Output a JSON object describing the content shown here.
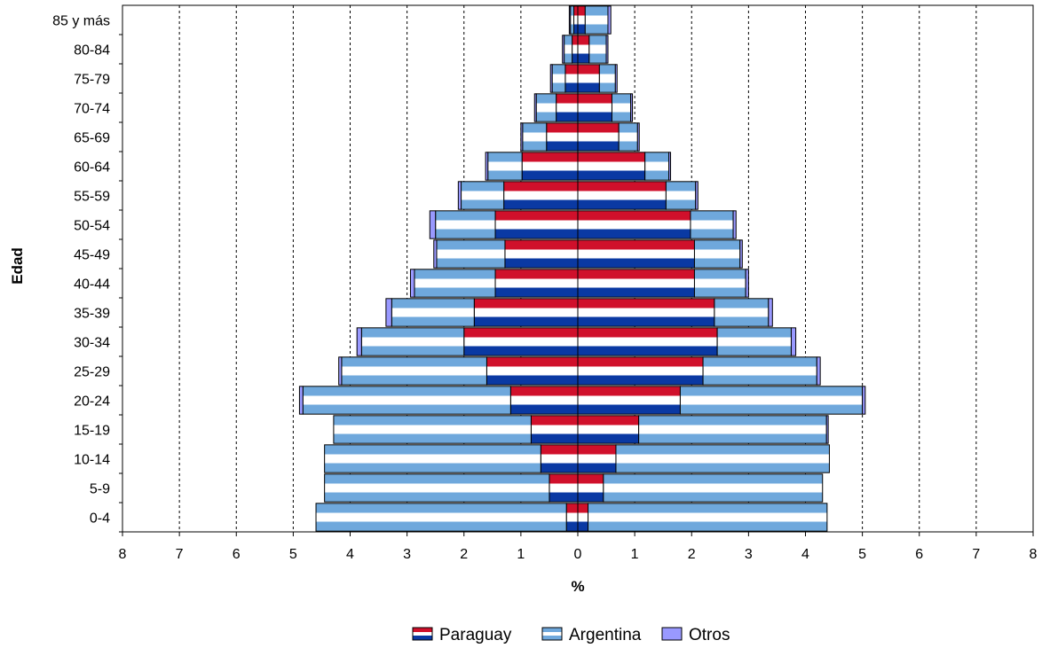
{
  "chart_data": {
    "type": "bar",
    "subtype": "population-pyramid",
    "orientation": "horizontal",
    "categories": [
      "0-4",
      "5-9",
      "10-14",
      "15-19",
      "20-24",
      "25-29",
      "30-34",
      "35-39",
      "40-44",
      "45-49",
      "50-54",
      "55-59",
      "60-64",
      "65-69",
      "70-74",
      "75-79",
      "80-84",
      "85 y más"
    ],
    "series": [
      {
        "name": "Paraguay",
        "left": [
          0.2,
          0.5,
          0.65,
          0.82,
          1.18,
          1.6,
          2.0,
          1.82,
          1.45,
          1.28,
          1.45,
          1.3,
          0.98,
          0.55,
          0.38,
          0.22,
          0.1,
          0.07
        ],
        "right": [
          0.18,
          0.45,
          0.67,
          1.07,
          1.8,
          2.2,
          2.45,
          2.4,
          2.05,
          2.05,
          1.98,
          1.55,
          1.18,
          0.72,
          0.6,
          0.38,
          0.2,
          0.13
        ]
      },
      {
        "name": "Argentina",
        "left": [
          4.4,
          3.95,
          3.8,
          3.47,
          3.65,
          2.55,
          1.8,
          1.45,
          1.42,
          1.2,
          1.05,
          0.75,
          0.6,
          0.42,
          0.35,
          0.23,
          0.14,
          0.06
        ],
        "right": [
          4.2,
          3.85,
          3.75,
          3.3,
          3.2,
          2.0,
          1.3,
          0.95,
          0.9,
          0.8,
          0.75,
          0.52,
          0.42,
          0.33,
          0.33,
          0.28,
          0.3,
          0.4
        ]
      },
      {
        "name": "Otros",
        "left": [
          0.0,
          0.0,
          0.0,
          0.0,
          0.06,
          0.05,
          0.08,
          0.1,
          0.07,
          0.05,
          0.1,
          0.05,
          0.04,
          0.03,
          0.03,
          0.03,
          0.03,
          0.02
        ],
        "right": [
          0.0,
          0.0,
          0.0,
          0.03,
          0.05,
          0.06,
          0.08,
          0.07,
          0.05,
          0.04,
          0.05,
          0.04,
          0.03,
          0.03,
          0.03,
          0.03,
          0.03,
          0.05
        ]
      }
    ],
    "colors": {
      "Paraguay": [
        "#d0102b",
        "#ffffff",
        "#0a39a3"
      ],
      "Argentina": [
        "#6fa8dc",
        "#ffffff",
        "#6fa8dc"
      ],
      "Otros": "#9999ff"
    },
    "xlabel": "%",
    "ylabel": "Edad",
    "xlim": [
      -8,
      8
    ],
    "xticks": [
      8,
      7,
      6,
      5,
      4,
      3,
      2,
      1,
      0,
      1,
      2,
      3,
      4,
      5,
      6,
      7,
      8
    ],
    "grid": "vertical dashed",
    "legend": "bottom-center"
  }
}
